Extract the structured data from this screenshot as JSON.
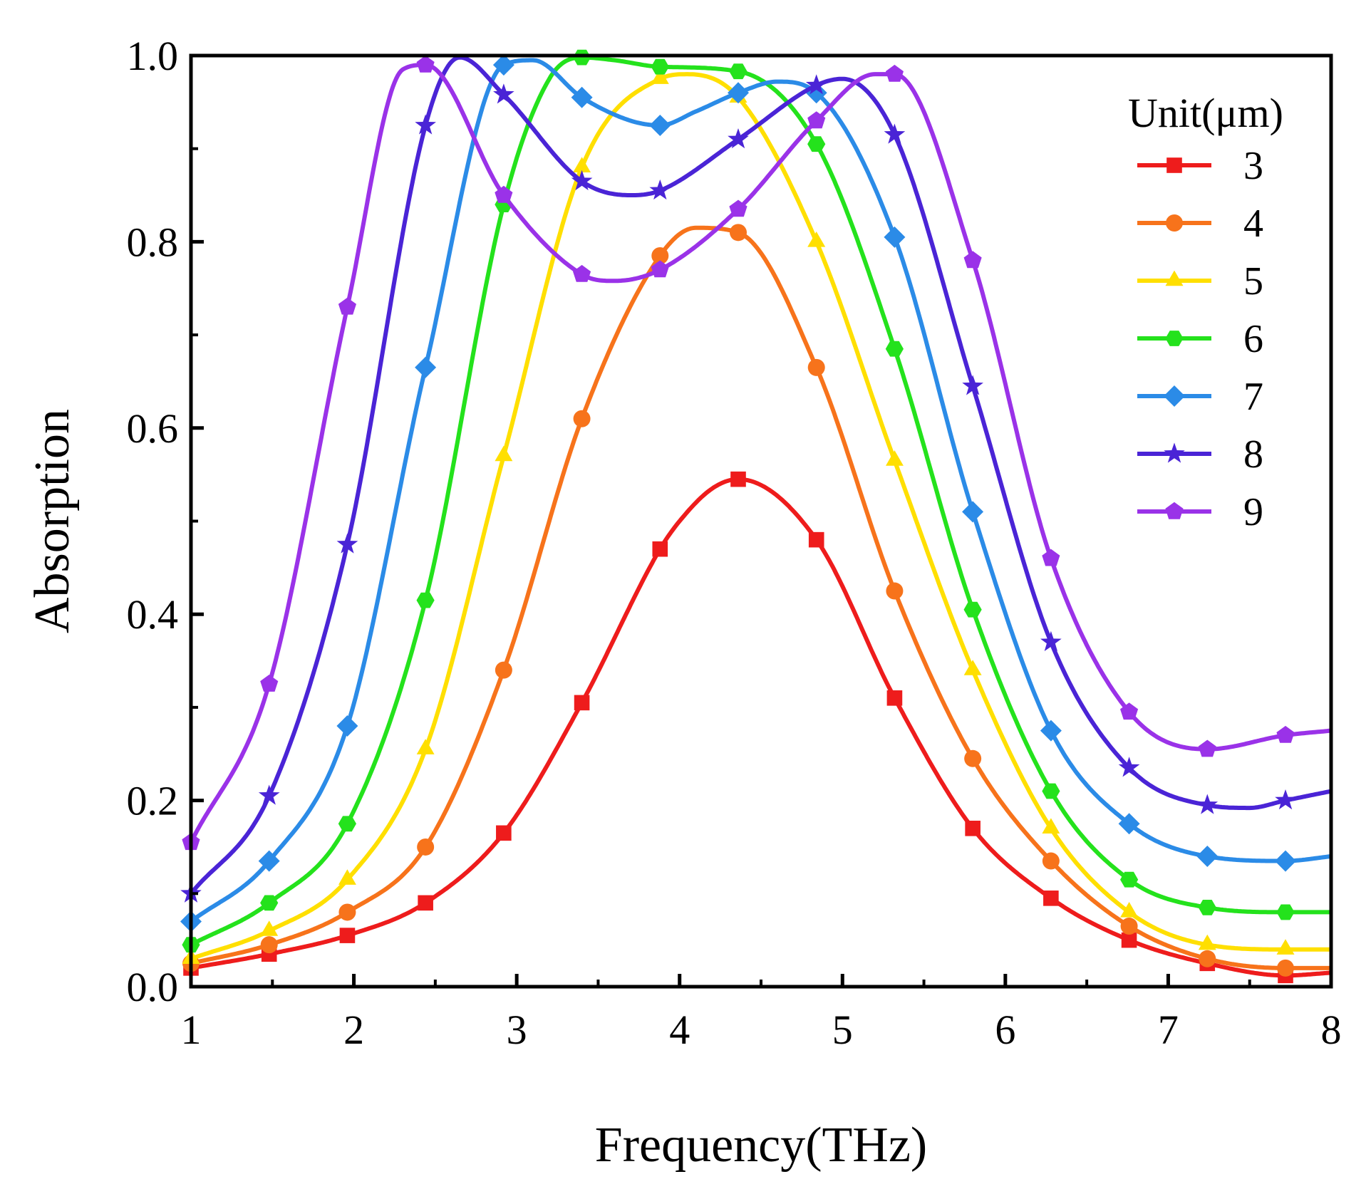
{
  "chart_data": {
    "type": "line",
    "xlabel": "Frequency(THz)",
    "ylabel": "Absorption",
    "xlim": [
      1,
      8
    ],
    "ylim": [
      0,
      1.0
    ],
    "x_ticks": [
      1,
      2,
      3,
      4,
      5,
      6,
      7,
      8
    ],
    "x_tick_labels": [
      "1",
      "2",
      "3",
      "4",
      "5",
      "6",
      "7",
      "8"
    ],
    "y_ticks": [
      0,
      0.2,
      0.4,
      0.6,
      0.8,
      1.0
    ],
    "y_tick_labels": [
      "0.0",
      "0.2",
      "0.4",
      "0.6",
      "0.8",
      "1.0"
    ],
    "legend_title": "Unit(μm)",
    "legend_position": "top-right",
    "grid": false,
    "marker_x": [
      1.0,
      1.48,
      1.96,
      2.44,
      2.92,
      3.4,
      3.88,
      4.36,
      4.84,
      5.32,
      5.8,
      6.28,
      6.76,
      7.24,
      7.72
    ],
    "series": [
      {
        "name": "3",
        "color": "#ee1c1c",
        "marker": "square",
        "x": [
          1.0,
          1.48,
          1.96,
          2.44,
          2.92,
          3.4,
          3.88,
          4.0,
          4.2,
          4.36,
          4.84,
          5.32,
          5.8,
          6.28,
          6.76,
          7.24,
          7.72,
          8.0
        ],
        "y": [
          0.02,
          0.035,
          0.055,
          0.09,
          0.165,
          0.305,
          0.47,
          0.5,
          0.535,
          0.545,
          0.48,
          0.31,
          0.17,
          0.095,
          0.05,
          0.025,
          0.012,
          0.015
        ]
      },
      {
        "name": "4",
        "color": "#f7731b",
        "marker": "circle",
        "x": [
          1.0,
          1.48,
          1.96,
          2.44,
          2.92,
          3.4,
          3.88,
          4.1,
          4.36,
          4.84,
          5.32,
          5.8,
          6.28,
          6.76,
          7.24,
          7.72,
          8.0
        ],
        "y": [
          0.025,
          0.045,
          0.08,
          0.15,
          0.34,
          0.61,
          0.785,
          0.815,
          0.81,
          0.665,
          0.425,
          0.245,
          0.135,
          0.065,
          0.03,
          0.02,
          0.02
        ]
      },
      {
        "name": "5",
        "color": "#ffdf00",
        "marker": "triangle",
        "x": [
          1.0,
          1.48,
          1.96,
          2.44,
          2.92,
          3.4,
          3.88,
          4.05,
          4.36,
          4.84,
          5.32,
          5.8,
          6.28,
          6.76,
          7.24,
          7.72,
          8.0
        ],
        "y": [
          0.03,
          0.06,
          0.115,
          0.255,
          0.57,
          0.88,
          0.975,
          0.98,
          0.955,
          0.8,
          0.565,
          0.34,
          0.17,
          0.08,
          0.045,
          0.04,
          0.04
        ]
      },
      {
        "name": "6",
        "color": "#24e21c",
        "marker": "hexagon",
        "x": [
          1.0,
          1.48,
          1.96,
          2.44,
          2.92,
          3.2,
          3.4,
          3.6,
          3.88,
          4.36,
          4.84,
          5.32,
          5.8,
          6.28,
          6.76,
          7.24,
          7.72,
          8.0
        ],
        "y": [
          0.045,
          0.09,
          0.175,
          0.415,
          0.84,
          0.975,
          0.998,
          0.995,
          0.988,
          0.983,
          0.905,
          0.685,
          0.405,
          0.21,
          0.115,
          0.085,
          0.08,
          0.08
        ]
      },
      {
        "name": "7",
        "color": "#2b8be7",
        "marker": "diamond",
        "x": [
          1.0,
          1.48,
          1.96,
          2.44,
          2.92,
          3.1,
          3.4,
          3.7,
          3.88,
          4.1,
          4.36,
          4.6,
          4.84,
          5.32,
          5.8,
          6.28,
          6.76,
          7.24,
          7.72,
          8.0
        ],
        "y": [
          0.07,
          0.135,
          0.28,
          0.665,
          0.99,
          0.995,
          0.955,
          0.93,
          0.925,
          0.94,
          0.96,
          0.972,
          0.96,
          0.805,
          0.51,
          0.275,
          0.175,
          0.14,
          0.135,
          0.14
        ]
      },
      {
        "name": "8",
        "color": "#4a24d6",
        "marker": "star",
        "x": [
          1.0,
          1.48,
          1.96,
          2.44,
          2.65,
          2.92,
          3.4,
          3.7,
          3.88,
          4.36,
          4.84,
          5.0,
          5.32,
          5.8,
          6.28,
          6.76,
          7.24,
          7.5,
          7.72,
          8.0
        ],
        "y": [
          0.1,
          0.205,
          0.475,
          0.925,
          0.998,
          0.958,
          0.865,
          0.85,
          0.855,
          0.91,
          0.968,
          0.975,
          0.915,
          0.645,
          0.37,
          0.235,
          0.195,
          0.192,
          0.2,
          0.21
        ]
      },
      {
        "name": "9",
        "color": "#9a32e8",
        "marker": "pentagon",
        "x": [
          1.0,
          1.48,
          1.96,
          2.3,
          2.44,
          2.92,
          3.4,
          3.6,
          3.88,
          4.36,
          4.84,
          5.2,
          5.32,
          5.8,
          6.28,
          6.76,
          7.24,
          7.72,
          8.0
        ],
        "y": [
          0.155,
          0.325,
          0.73,
          0.985,
          0.99,
          0.85,
          0.765,
          0.758,
          0.77,
          0.835,
          0.93,
          0.98,
          0.98,
          0.78,
          0.46,
          0.295,
          0.255,
          0.27,
          0.275
        ]
      }
    ]
  }
}
